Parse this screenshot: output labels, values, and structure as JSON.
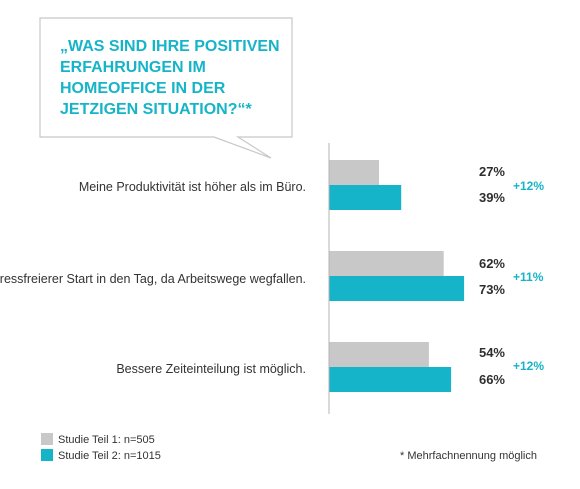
{
  "chart_data": {
    "type": "bar",
    "orientation": "horizontal",
    "title_lines": [
      "„WAS SIND IHRE POSITIVEN",
      "ERFAHRUNGEN IM",
      "HOMEOFFICE IN DER",
      "JETZIGEN SITUATION?“*"
    ],
    "categories": [
      "Meine Produktivität ist höher als im Büro.",
      "Stressfreierer Start in den Tag, da Arbeitswege wegfallen.",
      "Bessere Zeiteinteilung ist möglich."
    ],
    "series": [
      {
        "name": "Studie Teil 1: n=505",
        "values": [
          27,
          62,
          54
        ],
        "labels": [
          "27%",
          "62%",
          "54%"
        ],
        "color": "#c8c8c8"
      },
      {
        "name": "Studie Teil 2: n=1015",
        "values": [
          39,
          73,
          66
        ],
        "labels": [
          "39%",
          "73%",
          "66%"
        ],
        "color": "#16b4c8"
      }
    ],
    "deltas": [
      "+12%",
      "+11%",
      "+12%"
    ],
    "xlim": [
      0,
      100
    ],
    "grid": false,
    "legend": "bottom-left",
    "footnote": "* Mehrfachnennung möglich",
    "accent_color": "#16b4c8"
  }
}
